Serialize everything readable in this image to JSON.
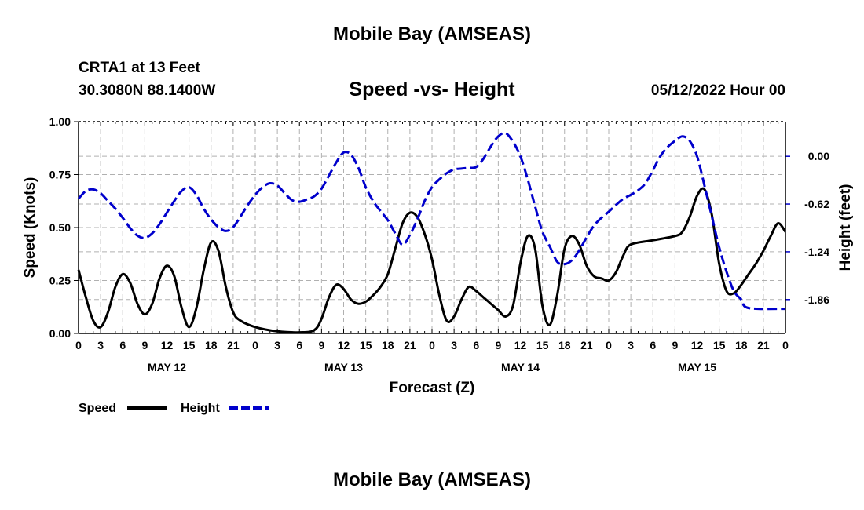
{
  "header": {
    "title": "Mobile Bay (AMSEAS)",
    "station": "CRTA1 at 13 Feet",
    "coords": "30.3080N  88.1400W",
    "subtitle": "Speed -vs- Height",
    "run_time": "05/12/2022 Hour 00"
  },
  "footer": {
    "title": "Mobile Bay (AMSEAS)"
  },
  "colors": {
    "speed": "#000000",
    "height": "#0000cc",
    "grid": "#b0b0b0"
  },
  "chart_data": {
    "type": "line",
    "title": "Speed -vs- Height",
    "xlabel": "Forecast (Z)",
    "ylabel": "Speed (Knots)",
    "y2label": "Height (feet)",
    "xlim": [
      0,
      96
    ],
    "ylim": [
      0,
      1.0
    ],
    "y2lim": [
      -2.3,
      0.45
    ],
    "x_ticks": [
      0,
      3,
      6,
      9,
      12,
      15,
      18,
      21,
      24,
      27,
      30,
      33,
      36,
      39,
      42,
      45,
      48,
      51,
      54,
      57,
      60,
      63,
      66,
      69,
      72,
      75,
      78,
      81,
      84,
      87,
      90,
      93,
      96
    ],
    "x_tick_labels": [
      "0",
      "3",
      "6",
      "9",
      "12",
      "15",
      "18",
      "21",
      "0",
      "3",
      "6",
      "9",
      "12",
      "15",
      "18",
      "21",
      "0",
      "3",
      "6",
      "9",
      "12",
      "15",
      "18",
      "21",
      "0",
      "3",
      "6",
      "9",
      "12",
      "15",
      "18",
      "21",
      "0"
    ],
    "day_labels": [
      {
        "label": "MAY 12",
        "x": 12
      },
      {
        "label": "MAY 13",
        "x": 36
      },
      {
        "label": "MAY 14",
        "x": 60
      },
      {
        "label": "MAY 15",
        "x": 84
      }
    ],
    "y_ticks": [
      0.0,
      0.25,
      0.5,
      0.75,
      1.0
    ],
    "y_tick_labels": [
      "0.00",
      "0.25",
      "0.50",
      "0.75",
      "1.00"
    ],
    "y2_ticks": [
      0.0,
      -0.62,
      -1.24,
      -1.86
    ],
    "y2_tick_labels": [
      "0.00",
      "-0.62",
      "-1.24",
      "-1.86"
    ],
    "grid": true,
    "legend_placement": "bottom-left",
    "series": [
      {
        "name": "Speed",
        "axis": "left",
        "style": "solid",
        "points": [
          [
            0,
            0.3
          ],
          [
            1,
            0.17
          ],
          [
            2,
            0.06
          ],
          [
            3,
            0.03
          ],
          [
            4,
            0.1
          ],
          [
            5,
            0.22
          ],
          [
            6,
            0.28
          ],
          [
            7,
            0.24
          ],
          [
            8,
            0.14
          ],
          [
            9,
            0.09
          ],
          [
            10,
            0.14
          ],
          [
            11,
            0.26
          ],
          [
            12,
            0.32
          ],
          [
            13,
            0.27
          ],
          [
            14,
            0.12
          ],
          [
            15,
            0.03
          ],
          [
            16,
            0.12
          ],
          [
            17,
            0.3
          ],
          [
            18,
            0.43
          ],
          [
            19,
            0.39
          ],
          [
            20,
            0.22
          ],
          [
            21,
            0.1
          ],
          [
            22,
            0.06
          ],
          [
            24,
            0.03
          ],
          [
            27,
            0.01
          ],
          [
            30,
            0.005
          ],
          [
            32,
            0.015
          ],
          [
            33,
            0.07
          ],
          [
            34,
            0.17
          ],
          [
            35,
            0.23
          ],
          [
            36,
            0.21
          ],
          [
            37,
            0.16
          ],
          [
            38,
            0.14
          ],
          [
            39,
            0.15
          ],
          [
            40,
            0.18
          ],
          [
            41,
            0.22
          ],
          [
            42,
            0.28
          ],
          [
            43,
            0.4
          ],
          [
            44,
            0.52
          ],
          [
            45,
            0.57
          ],
          [
            46,
            0.55
          ],
          [
            47,
            0.47
          ],
          [
            48,
            0.35
          ],
          [
            49,
            0.18
          ],
          [
            50,
            0.06
          ],
          [
            51,
            0.08
          ],
          [
            52,
            0.16
          ],
          [
            53,
            0.22
          ],
          [
            54,
            0.2
          ],
          [
            55,
            0.17
          ],
          [
            56,
            0.14
          ],
          [
            57,
            0.11
          ],
          [
            58,
            0.08
          ],
          [
            59,
            0.13
          ],
          [
            60,
            0.33
          ],
          [
            61,
            0.46
          ],
          [
            62,
            0.4
          ],
          [
            63,
            0.13
          ],
          [
            64,
            0.04
          ],
          [
            65,
            0.18
          ],
          [
            66,
            0.4
          ],
          [
            67,
            0.46
          ],
          [
            68,
            0.42
          ],
          [
            69,
            0.32
          ],
          [
            70,
            0.27
          ],
          [
            71,
            0.26
          ],
          [
            72,
            0.25
          ],
          [
            73,
            0.29
          ],
          [
            74,
            0.37
          ],
          [
            75,
            0.42
          ],
          [
            78,
            0.44
          ],
          [
            81,
            0.46
          ],
          [
            82,
            0.48
          ],
          [
            83,
            0.55
          ],
          [
            84,
            0.65
          ],
          [
            85,
            0.68
          ],
          [
            86,
            0.56
          ],
          [
            87,
            0.33
          ],
          [
            88,
            0.2
          ],
          [
            89,
            0.19
          ],
          [
            90,
            0.23
          ],
          [
            91,
            0.28
          ],
          [
            92,
            0.33
          ],
          [
            93,
            0.39
          ],
          [
            94,
            0.46
          ],
          [
            95,
            0.52
          ],
          [
            96,
            0.48
          ]
        ]
      },
      {
        "name": "Height",
        "axis": "right",
        "style": "dashed",
        "points": [
          [
            0,
            -0.55
          ],
          [
            1,
            -0.45
          ],
          [
            2,
            -0.43
          ],
          [
            3,
            -0.48
          ],
          [
            4,
            -0.58
          ],
          [
            5,
            -0.68
          ],
          [
            6,
            -0.8
          ],
          [
            7,
            -0.93
          ],
          [
            8,
            -1.03
          ],
          [
            9,
            -1.06
          ],
          [
            10,
            -1.0
          ],
          [
            11,
            -0.88
          ],
          [
            12,
            -0.73
          ],
          [
            13,
            -0.58
          ],
          [
            14,
            -0.45
          ],
          [
            15,
            -0.4
          ],
          [
            16,
            -0.5
          ],
          [
            17,
            -0.68
          ],
          [
            18,
            -0.82
          ],
          [
            19,
            -0.92
          ],
          [
            20,
            -0.97
          ],
          [
            21,
            -0.92
          ],
          [
            22,
            -0.78
          ],
          [
            23,
            -0.63
          ],
          [
            24,
            -0.5
          ],
          [
            25,
            -0.4
          ],
          [
            26,
            -0.35
          ],
          [
            27,
            -0.38
          ],
          [
            28,
            -0.48
          ],
          [
            29,
            -0.57
          ],
          [
            30,
            -0.59
          ],
          [
            31,
            -0.56
          ],
          [
            32,
            -0.52
          ],
          [
            33,
            -0.42
          ],
          [
            34,
            -0.25
          ],
          [
            35,
            -0.08
          ],
          [
            36,
            0.05
          ],
          [
            37,
            0.02
          ],
          [
            38,
            -0.15
          ],
          [
            39,
            -0.4
          ],
          [
            40,
            -0.58
          ],
          [
            41,
            -0.71
          ],
          [
            42,
            -0.83
          ],
          [
            43,
            -1.0
          ],
          [
            44,
            -1.15
          ],
          [
            45,
            -1.02
          ],
          [
            46,
            -0.82
          ],
          [
            47,
            -0.58
          ],
          [
            48,
            -0.4
          ],
          [
            49,
            -0.3
          ],
          [
            50,
            -0.22
          ],
          [
            51,
            -0.17
          ],
          [
            52,
            -0.16
          ],
          [
            53,
            -0.15
          ],
          [
            54,
            -0.14
          ],
          [
            55,
            -0.03
          ],
          [
            56,
            0.13
          ],
          [
            57,
            0.26
          ],
          [
            58,
            0.3
          ],
          [
            59,
            0.19
          ],
          [
            60,
            0.0
          ],
          [
            61,
            -0.3
          ],
          [
            62,
            -0.65
          ],
          [
            63,
            -0.98
          ],
          [
            64,
            -1.17
          ],
          [
            65,
            -1.37
          ],
          [
            66,
            -1.4
          ],
          [
            67,
            -1.35
          ],
          [
            68,
            -1.22
          ],
          [
            69,
            -1.05
          ],
          [
            70,
            -0.9
          ],
          [
            71,
            -0.8
          ],
          [
            72,
            -0.72
          ],
          [
            73,
            -0.63
          ],
          [
            74,
            -0.55
          ],
          [
            75,
            -0.5
          ],
          [
            76,
            -0.44
          ],
          [
            77,
            -0.35
          ],
          [
            78,
            -0.18
          ],
          [
            79,
            0.0
          ],
          [
            80,
            0.12
          ],
          [
            81,
            0.2
          ],
          [
            82,
            0.26
          ],
          [
            83,
            0.2
          ],
          [
            84,
            0.0
          ],
          [
            85,
            -0.38
          ],
          [
            86,
            -0.78
          ],
          [
            87,
            -1.18
          ],
          [
            88,
            -1.5
          ],
          [
            89,
            -1.75
          ],
          [
            90,
            -1.86
          ],
          [
            91,
            -1.97
          ],
          [
            96,
            -1.98
          ]
        ]
      }
    ]
  },
  "legend": {
    "speed_label": "Speed",
    "height_label": "Height"
  }
}
